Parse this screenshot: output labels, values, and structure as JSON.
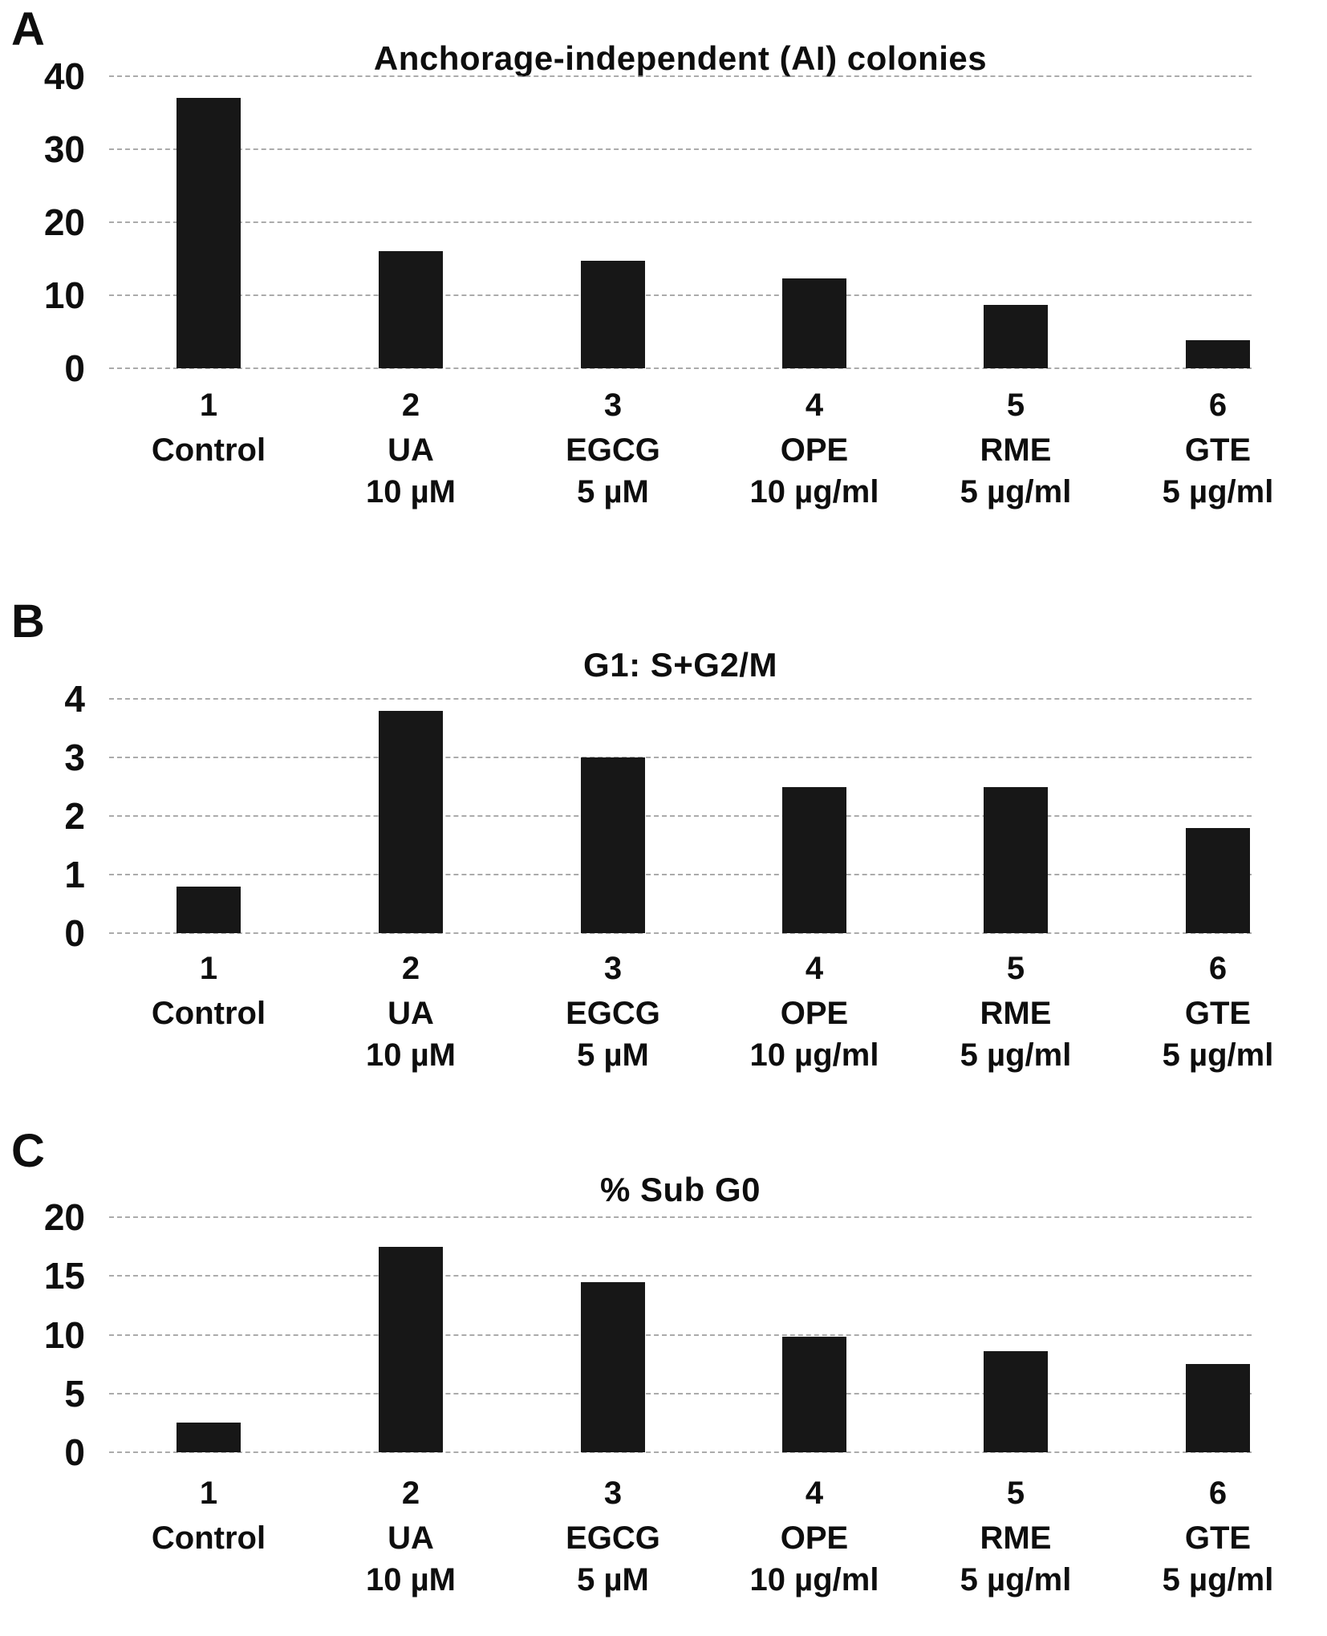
{
  "figure": {
    "background": "#ffffff",
    "bar_color": "#171717",
    "grid_color": "#8f8f8f",
    "text_color": "#0e0e0e"
  },
  "categories": [
    {
      "number": "1",
      "name": "Control",
      "dose": ""
    },
    {
      "number": "2",
      "name": "UA",
      "dose": "10 µM"
    },
    {
      "number": "3",
      "name": "EGCG",
      "dose": "5 µM"
    },
    {
      "number": "4",
      "name": "OPE",
      "dose": "10 µg/ml"
    },
    {
      "number": "5",
      "name": "RME",
      "dose": "5 µg/ml"
    },
    {
      "number": "6",
      "name": "GTE",
      "dose": "5 µg/ml"
    }
  ],
  "chart_data": [
    {
      "panel": "A",
      "type": "bar",
      "title": "Anchorage-independent (AI) colonies",
      "categories": [
        "1 Control",
        "2 UA 10 µM",
        "3 EGCG 5 µM",
        "4 OPE 10 µg/ml",
        "5 RME 5 µg/ml",
        "6 GTE 5 µg/ml"
      ],
      "values": [
        37,
        16,
        14.7,
        12.3,
        8.7,
        3.9
      ],
      "xlabel": "",
      "ylabel": "",
      "ylim": [
        0,
        40
      ],
      "yticks": [
        40,
        30,
        20,
        10,
        0
      ],
      "grid": true,
      "legend": "none"
    },
    {
      "panel": "B",
      "type": "bar",
      "title": "G1: S+G2/M",
      "categories": [
        "1 Control",
        "2 UA 10 µM",
        "3 EGCG 5 µM",
        "4 OPE 10 µg/ml",
        "5 RME 5 µg/ml",
        "6 GTE 5 µg/ml"
      ],
      "values": [
        0.8,
        3.8,
        3.0,
        2.5,
        2.5,
        1.8
      ],
      "xlabel": "",
      "ylabel": "",
      "ylim": [
        0,
        4
      ],
      "yticks": [
        4,
        3,
        2,
        1,
        0
      ],
      "grid": true,
      "legend": "none"
    },
    {
      "panel": "C",
      "type": "bar",
      "title": "% Sub G0",
      "categories": [
        "1 Control",
        "2 UA 10 µM",
        "3 EGCG 5 µM",
        "4 OPE 10 µg/ml",
        "5 RME 5 µg/ml",
        "6 GTE 5 µg/ml"
      ],
      "values": [
        2.5,
        17.5,
        14.5,
        9.8,
        8.6,
        7.5
      ],
      "xlabel": "",
      "ylabel": "",
      "ylim": [
        0,
        20
      ],
      "yticks": [
        20,
        15,
        10,
        5,
        0
      ],
      "grid": true,
      "legend": "none"
    }
  ]
}
